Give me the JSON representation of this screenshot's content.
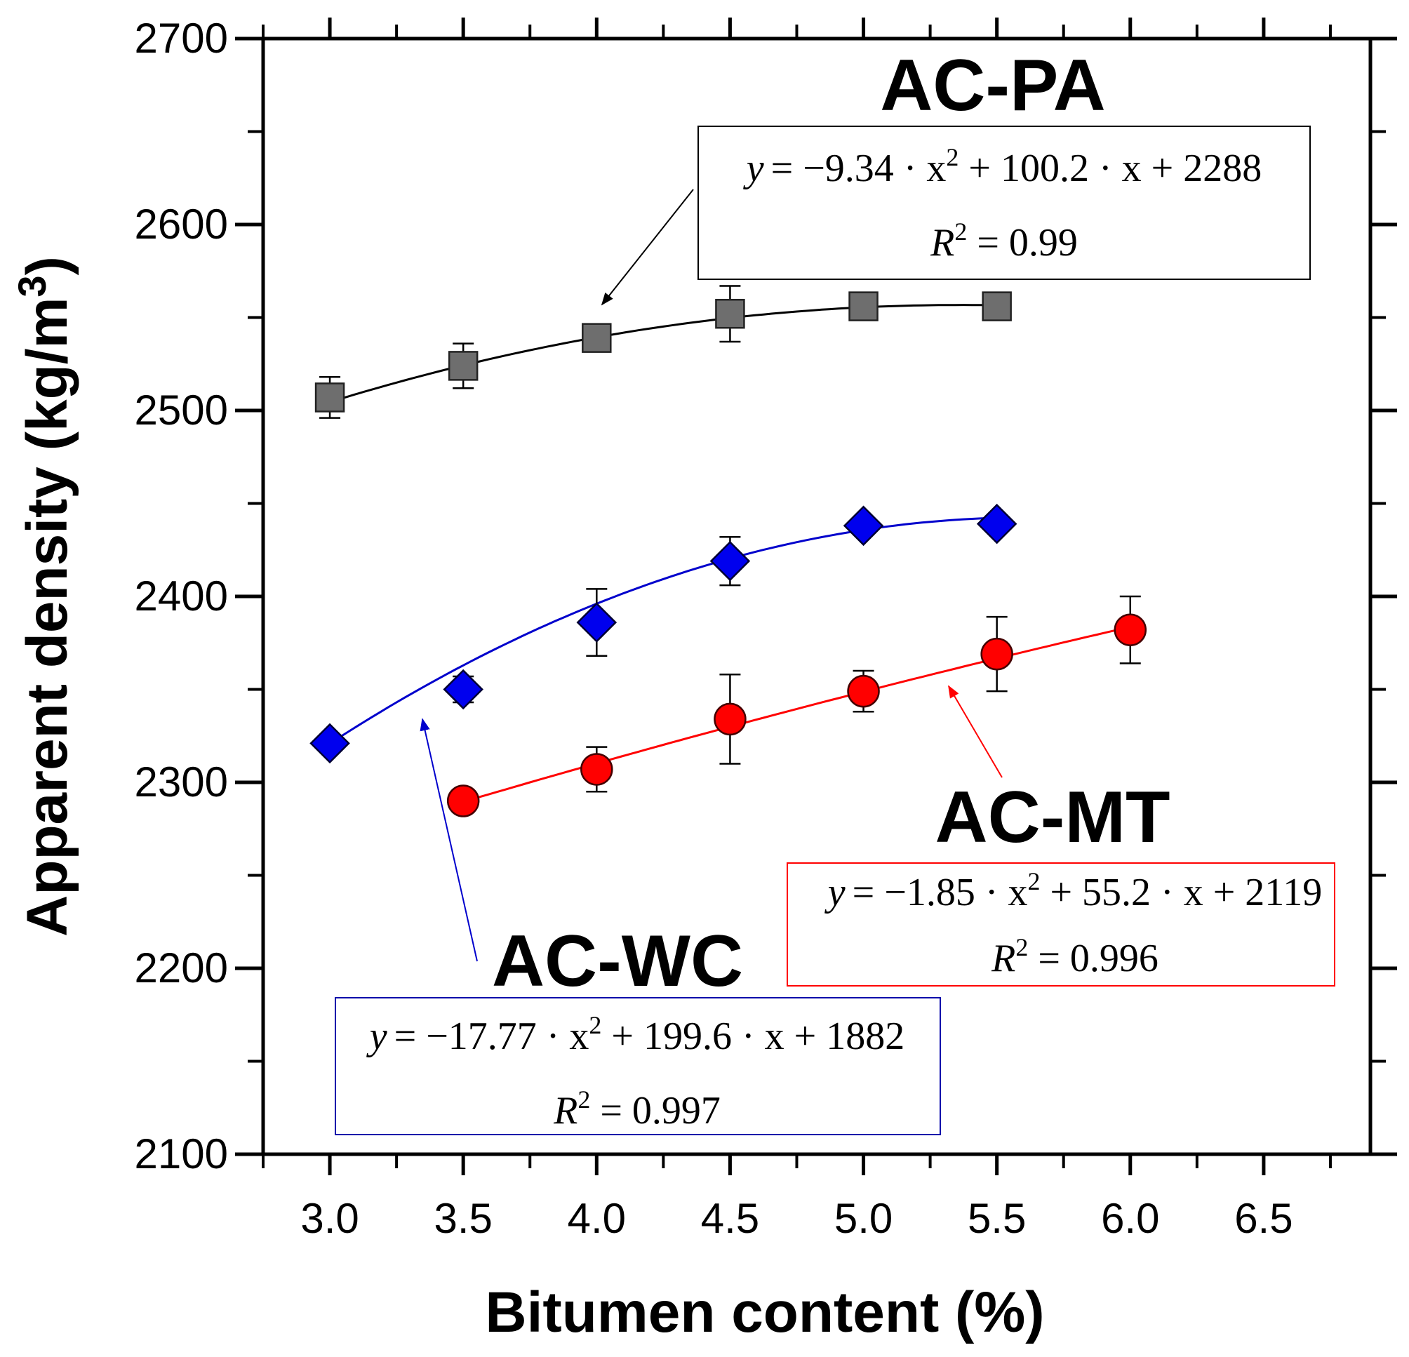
{
  "chart_data": {
    "type": "scatter",
    "xlabel": "Bitumen content (%)",
    "ylabel": "Apparent density (kg/m",
    "ylabel_sup": "3",
    "ylabel_close": ")",
    "xlim": [
      2.75,
      6.9
    ],
    "ylim": [
      2100,
      2700
    ],
    "x_ticks": [
      3.0,
      3.5,
      4.0,
      4.5,
      5.0,
      5.5,
      6.0,
      6.5
    ],
    "x_tick_labels": [
      "3.0",
      "3.5",
      "4.0",
      "4.5",
      "5.0",
      "5.5",
      "6.0",
      "6.5"
    ],
    "y_ticks": [
      2100,
      2200,
      2300,
      2400,
      2500,
      2600,
      2700
    ],
    "y_tick_labels": [
      "2100",
      "2200",
      "2300",
      "2400",
      "2500",
      "2600",
      "2700"
    ],
    "series": [
      {
        "name": "AC-PA",
        "marker": "square",
        "color": "#6e6e6e",
        "line_color": "#000000",
        "x": [
          3.0,
          3.5,
          4.0,
          4.5,
          5.0,
          5.5
        ],
        "y": [
          2507,
          2524,
          2539,
          2552,
          2556,
          2556
        ],
        "err": [
          11,
          12,
          6,
          15,
          4,
          4
        ],
        "fit": {
          "a": -9.34,
          "b": 100.2,
          "c": 2288,
          "x_range": [
            3.0,
            5.5
          ]
        },
        "equation": {
          "y": "y",
          "rhs": "= −9.34 · x",
          "sup": "2",
          "rhs2": " + 100.2 · x + 2288",
          "r_text": "R",
          "r_sup": "2",
          "r_rhs": " = 0.99"
        }
      },
      {
        "name": "AC-WC",
        "marker": "diamond",
        "color": "#0000ee",
        "line_color": "#0000cc",
        "x": [
          3.0,
          3.5,
          4.0,
          4.5,
          5.0,
          5.5
        ],
        "y": [
          2321,
          2350,
          2386,
          2419,
          2438,
          2439
        ],
        "err": [
          3,
          7,
          18,
          13,
          4,
          4
        ],
        "fit": {
          "a": -17.77,
          "b": 199.6,
          "c": 1882,
          "x_range": [
            3.0,
            5.5
          ]
        },
        "equation": {
          "y": "y",
          "rhs": "= −17.77 · x",
          "sup": "2",
          "rhs2": " + 199.6 · x + 1882",
          "r_text": "R",
          "r_sup": "2",
          "r_rhs": " = 0.997"
        }
      },
      {
        "name": "AC-MT",
        "marker": "circle",
        "color": "#ff0000",
        "line_color": "#ff0000",
        "x": [
          3.5,
          4.0,
          4.5,
          5.0,
          5.5,
          6.0
        ],
        "y": [
          2290,
          2307,
          2334,
          2349,
          2369,
          2382
        ],
        "err": [
          4,
          12,
          24,
          11,
          20,
          18
        ],
        "fit": {
          "a": -1.85,
          "b": 55.2,
          "c": 2119,
          "x_range": [
            3.5,
            6.0
          ]
        },
        "equation": {
          "y": "y",
          "rhs": "= −1.85 · x",
          "sup": "2",
          "rhs2": " + 55.2 · x + 2119",
          "r_text": "R",
          "r_sup": "2",
          "r_rhs": " = 0.996"
        }
      }
    ]
  }
}
